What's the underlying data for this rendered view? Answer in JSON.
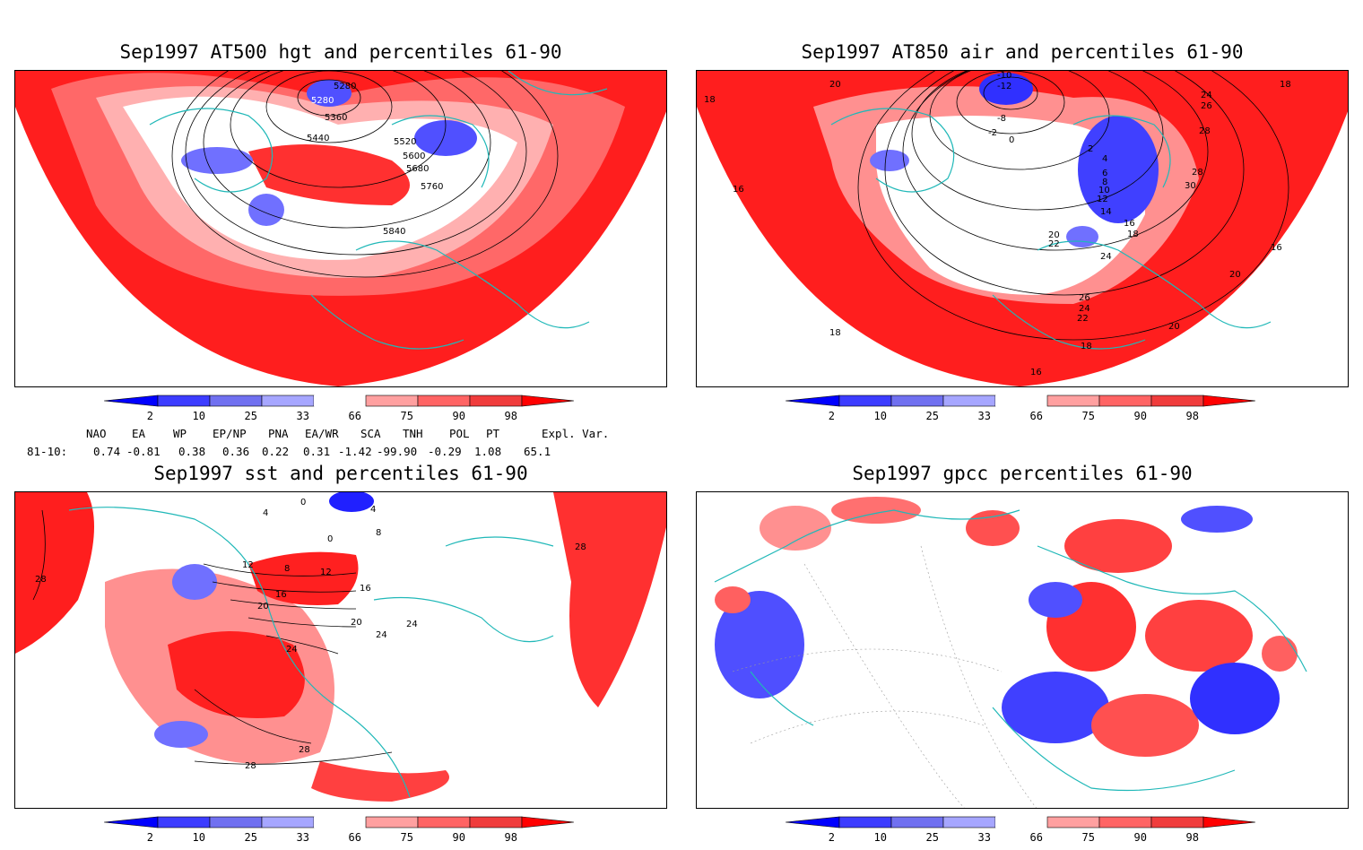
{
  "panels": [
    {
      "id": "p1",
      "title": "Sep1997 AT500 hgt and percentiles 61-90",
      "contour_labels": [
        "5280",
        "5280",
        "5360",
        "5440",
        "5520",
        "5600",
        "5680",
        "5760",
        "5840"
      ]
    },
    {
      "id": "p2",
      "title": "Sep1997 AT850 air and percentiles 61-90",
      "contour_labels": [
        "18",
        "16",
        "20",
        "18",
        "-10",
        "-12",
        "-8",
        "-2",
        "0",
        "2",
        "4",
        "6",
        "8",
        "10",
        "12",
        "14",
        "16",
        "18",
        "20",
        "22",
        "24",
        "26",
        "28",
        "28",
        "30",
        "24",
        "26",
        "24",
        "22",
        "20",
        "18",
        "16",
        "16",
        "18",
        "20"
      ]
    },
    {
      "id": "p3",
      "title": "Sep1997 sst and percentiles 61-90",
      "contour_labels": [
        "28",
        "28",
        "12",
        "16",
        "8",
        "12",
        "20",
        "24",
        "24",
        "20",
        "16",
        "24",
        "28",
        "28",
        "4",
        "8",
        "0",
        "0",
        "4"
      ]
    },
    {
      "id": "p4",
      "title": "Sep1997 gpcc percentiles 61-90",
      "contour_labels": []
    }
  ],
  "colorbar": {
    "labels": [
      "2",
      "10",
      "25",
      "33",
      "66",
      "75",
      "90",
      "98"
    ],
    "colors": {
      "c1": "#0000ff",
      "c2": "#3c3cff",
      "c3": "#7070f0",
      "c4": "#a6a6ff",
      "white": "#ffffff",
      "w1": "#ffa0a0",
      "w2": "#ff6464",
      "w3": "#f03c3c",
      "w4": "#ff0000"
    }
  },
  "indices": {
    "headers": [
      "NAO",
      "EA",
      "WP",
      "EP/NP",
      "PNA",
      "EA/WR",
      "SCA",
      "TNH",
      "POL",
      "PT",
      "Expl. Var."
    ],
    "row_label": "81-10:",
    "values": [
      "0.74",
      "-0.81",
      "0.38",
      "0.36",
      "0.22",
      "0.31",
      "-1.42",
      "-99.90",
      "-0.29",
      "1.08",
      "65.1"
    ]
  },
  "map_colors": {
    "coast": "#20b8b8",
    "contour": "#000000",
    "grid": "#888888"
  }
}
